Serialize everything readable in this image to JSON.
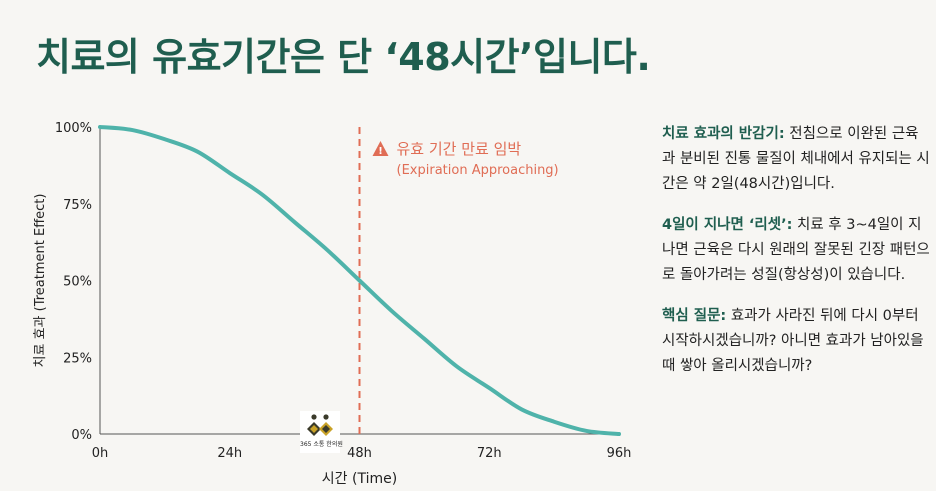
{
  "title": "치료의 유효기간은 단 ‘48시간’입니다.",
  "colors": {
    "curve": "#4fb3aa",
    "marker": "#e06d55",
    "heading": "#1f5e4f"
  },
  "chart_data": {
    "type": "line",
    "xlabel": "시간 (Time)",
    "ylabel": "치료 효과 (Treatment Effect)",
    "xlim": [
      0,
      96
    ],
    "ylim": [
      0,
      100
    ],
    "x_ticks": [
      0,
      24,
      48,
      72,
      96
    ],
    "x_tick_labels": [
      "0h",
      "24h",
      "48h",
      "72h",
      "96h"
    ],
    "y_ticks": [
      0,
      25,
      50,
      75,
      100
    ],
    "y_tick_labels": [
      "0%",
      "25%",
      "50%",
      "75%",
      "100%"
    ],
    "grid": false,
    "series": [
      {
        "x": [
          0,
          6,
          12,
          18,
          24,
          30,
          36,
          42,
          48,
          54,
          60,
          66,
          72,
          78,
          84,
          90,
          96
        ],
        "values": [
          100,
          99,
          96,
          92,
          85,
          78,
          69,
          60,
          50,
          40,
          31,
          22,
          15,
          8,
          4,
          1,
          0
        ]
      }
    ],
    "marker": {
      "x": 48,
      "label": "유효 기간 만료 임박",
      "sublabel": "(Expiration Approaching)",
      "icon": "warning-triangle-icon"
    }
  },
  "side": {
    "p1": {
      "head": "치료 효과의 반감기:",
      "text": " 전침으로 이완된 근육과 분비된 진통 물질이 체내에서 유지되는 시간은 약 2일(48시간)입니다."
    },
    "p2": {
      "head": "4일이 지나면 ‘리셋’:",
      "text": " 치료 후 3~4일이 지나면 근육은 다시 원래의 잘못된 긴장 패턴으로 돌아가려는 성질(항상성)이 있습니다."
    },
    "p3": {
      "head": "핵심 질문:",
      "text": " 효과가 사라진 뒤에 다시 0부터 시작하시겠습니까? 아니면 효과가 남아있을 때 쌓아 올리시겠습니까?"
    }
  },
  "logo": {
    "brand": "365 소통 한의원",
    "icon": "clinic-logo-icon"
  }
}
